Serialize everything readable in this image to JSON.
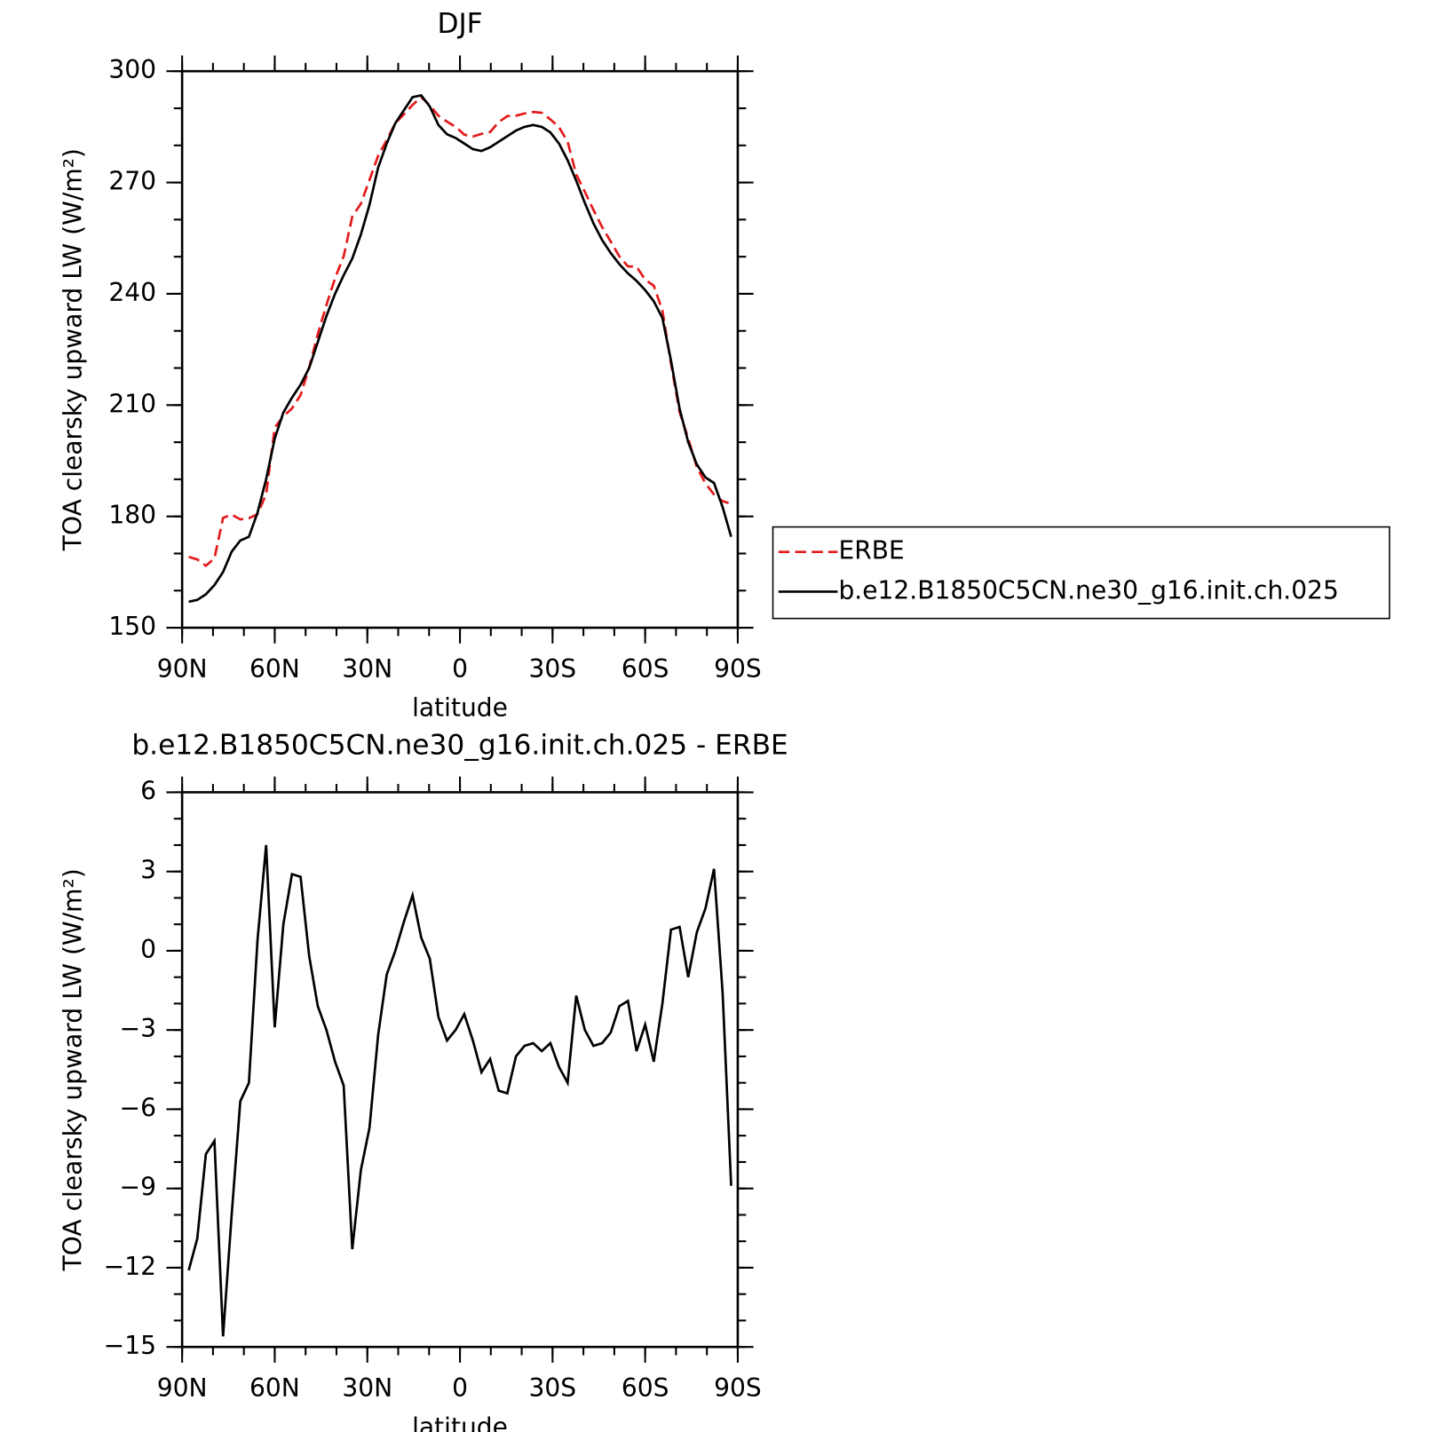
{
  "chart_data": [
    {
      "type": "line",
      "title": "DJF",
      "ylabel": "TOA clearsky upward LW (W/m²)",
      "xlabel": "latitude",
      "x": [
        87.86,
        85.1,
        82.31,
        79.53,
        76.74,
        73.95,
        71.16,
        68.37,
        65.58,
        62.79,
        60.0,
        57.21,
        54.42,
        51.63,
        48.84,
        46.05,
        43.25,
        40.46,
        37.67,
        34.88,
        32.09,
        29.3,
        26.51,
        23.72,
        20.93,
        18.14,
        15.35,
        12.56,
        9.77,
        6.98,
        4.19,
        1.4,
        -1.4,
        -4.19,
        -6.98,
        -9.77,
        -12.56,
        -15.35,
        -18.14,
        -20.93,
        -23.72,
        -26.51,
        -29.3,
        -32.09,
        -34.88,
        -37.67,
        -40.46,
        -43.25,
        -46.05,
        -48.84,
        -51.63,
        -54.42,
        -57.21,
        -60.0,
        -62.79,
        -65.58,
        -68.37,
        -71.16,
        -73.95,
        -76.74,
        -79.53,
        -82.31,
        -85.1,
        -87.86
      ],
      "xlim": [
        90,
        -90
      ],
      "xticks": [
        {
          "value": 90,
          "label": "90N"
        },
        {
          "value": 60,
          "label": "60N"
        },
        {
          "value": 30,
          "label": "30N"
        },
        0,
        {
          "value": -30,
          "label": "30S"
        },
        {
          "value": -60,
          "label": "60S"
        },
        {
          "value": -90,
          "label": "90S"
        }
      ],
      "xminorstep": 10,
      "ylim": [
        150,
        300
      ],
      "yticks": [
        150,
        180,
        210,
        240,
        270,
        300
      ],
      "yminorstep": 10,
      "legend": "right",
      "series": [
        {
          "name": "ERBE",
          "color": "#e41a1c",
          "linestyle": "dashed",
          "values": [
            169.1,
            168.4,
            166.7,
            168.7,
            179.6,
            180.5,
            179.2,
            179.5,
            180.6,
            186,
            203.9,
            207,
            209.1,
            212.7,
            220.2,
            229.1,
            237,
            244.2,
            250.1,
            260.8,
            264.3,
            270.7,
            277.2,
            281.4,
            286,
            288.4,
            290.9,
            293,
            290.8,
            288,
            286.4,
            285,
            282.9,
            282.4,
            283.1,
            283.6,
            286.3,
            287.9,
            288,
            288.6,
            289,
            288.8,
            287,
            284.9,
            281,
            272.2,
            267.5,
            262.6,
            258,
            254.1,
            250.1,
            247.4,
            247.3,
            243.8,
            242.2,
            235.5,
            221.2,
            208.1,
            201,
            193.3,
            188.9,
            185.9,
            184.1,
            183.4
          ]
        },
        {
          "name": "b.e12.B1850C5CN.ne30_g16.init.ch.025",
          "color": "#000000",
          "linestyle": "solid",
          "values": [
            157,
            157.5,
            159,
            161.5,
            165,
            170.5,
            173.5,
            174.5,
            181,
            190,
            201,
            208,
            212,
            215.5,
            220,
            227,
            234,
            240,
            245,
            249.5,
            256,
            264,
            274,
            280.5,
            286,
            289.5,
            293,
            293.5,
            290.5,
            285.5,
            283,
            282,
            280.5,
            279,
            278.5,
            279.5,
            281,
            282.5,
            284,
            285,
            285.5,
            285,
            283.5,
            280.5,
            276,
            270.5,
            264.5,
            259,
            254.5,
            251,
            248,
            245.5,
            243.5,
            241,
            238,
            233.5,
            222,
            209,
            200,
            194,
            190.5,
            189,
            182.5,
            174.5
          ]
        }
      ]
    },
    {
      "type": "line",
      "title": "b.e12.B1850C5CN.ne30_g16.init.ch.025 - ERBE",
      "ylabel": "TOA clearsky upward LW (W/m²)",
      "xlabel": "latitude",
      "x": [
        87.86,
        85.1,
        82.31,
        79.53,
        76.74,
        73.95,
        71.16,
        68.37,
        65.58,
        62.79,
        60.0,
        57.21,
        54.42,
        51.63,
        48.84,
        46.05,
        43.25,
        40.46,
        37.67,
        34.88,
        32.09,
        29.3,
        26.51,
        23.72,
        20.93,
        18.14,
        15.35,
        12.56,
        9.77,
        6.98,
        4.19,
        1.4,
        -1.4,
        -4.19,
        -6.98,
        -9.77,
        -12.56,
        -15.35,
        -18.14,
        -20.93,
        -23.72,
        -26.51,
        -29.3,
        -32.09,
        -34.88,
        -37.67,
        -40.46,
        -43.25,
        -46.05,
        -48.84,
        -51.63,
        -54.42,
        -57.21,
        -60.0,
        -62.79,
        -65.58,
        -68.37,
        -71.16,
        -73.95,
        -76.74,
        -79.53,
        -82.31,
        -85.1,
        -87.86
      ],
      "xlim": [
        90,
        -90
      ],
      "xticks": [
        {
          "value": 90,
          "label": "90N"
        },
        {
          "value": 60,
          "label": "60N"
        },
        {
          "value": 30,
          "label": "30N"
        },
        0,
        {
          "value": -30,
          "label": "30S"
        },
        {
          "value": -60,
          "label": "60S"
        },
        {
          "value": -90,
          "label": "90S"
        }
      ],
      "xminorstep": 10,
      "ylim": [
        -15,
        6
      ],
      "yticks": [
        {
          "value": -15,
          "label": "−15"
        },
        {
          "value": -12,
          "label": "−12"
        },
        {
          "value": -9,
          "label": "−9"
        },
        {
          "value": -6,
          "label": "−6"
        },
        {
          "value": -3,
          "label": "−3"
        },
        0,
        3,
        6
      ],
      "yminorstep": 1,
      "series": [
        {
          "color": "#000000",
          "linestyle": "solid",
          "values": [
            -12.1,
            -10.9,
            -7.7,
            -7.2,
            -14.6,
            -10,
            -5.7,
            -5,
            0.4,
            4,
            -2.9,
            1,
            2.9,
            2.8,
            -0.2,
            -2.1,
            -3,
            -4.2,
            -5.1,
            -11.3,
            -8.3,
            -6.7,
            -3.2,
            -0.9,
            0,
            1.1,
            2.1,
            0.5,
            -0.3,
            -2.5,
            -3.4,
            -3,
            -2.4,
            -3.4,
            -4.6,
            -4.1,
            -5.3,
            -5.4,
            -4,
            -3.6,
            -3.5,
            -3.8,
            -3.5,
            -4.4,
            -5,
            -1.7,
            -3,
            -3.6,
            -3.5,
            -3.1,
            -2.1,
            -1.9,
            -3.8,
            -2.8,
            -4.2,
            -2,
            0.8,
            0.9,
            -1,
            0.7,
            1.6,
            3.1,
            -1.6,
            -8.9
          ]
        }
      ]
    }
  ]
}
